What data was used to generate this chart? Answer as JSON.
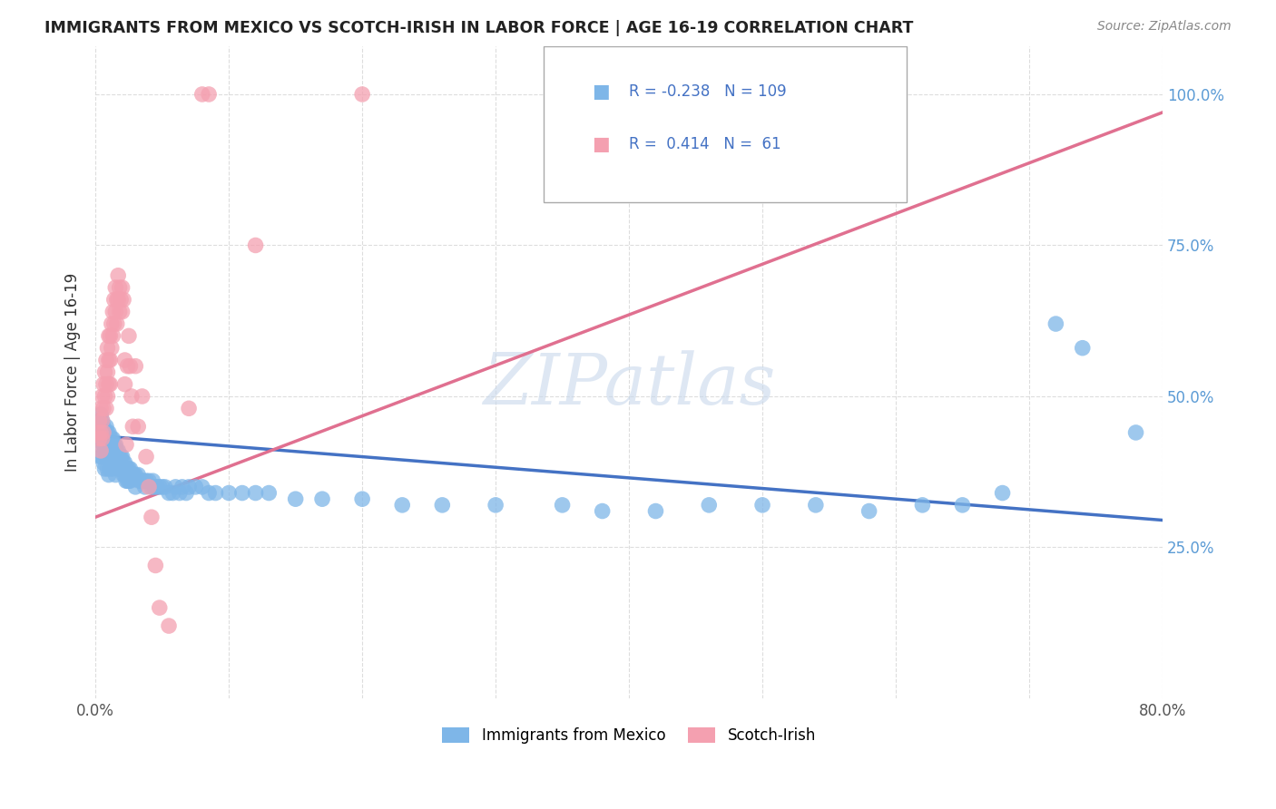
{
  "title": "IMMIGRANTS FROM MEXICO VS SCOTCH-IRISH IN LABOR FORCE | AGE 16-19 CORRELATION CHART",
  "source": "Source: ZipAtlas.com",
  "ylabel": "In Labor Force | Age 16-19",
  "x_min": 0.0,
  "x_max": 0.8,
  "y_min": 0.0,
  "y_max": 1.08,
  "y_ticks": [
    0.25,
    0.5,
    0.75,
    1.0
  ],
  "y_tick_labels": [
    "25.0%",
    "50.0%",
    "75.0%",
    "100.0%"
  ],
  "watermark": "ZIPatlas",
  "legend_blue_R": "-0.238",
  "legend_blue_N": "109",
  "legend_pink_R": "0.414",
  "legend_pink_N": "61",
  "blue_color": "#7EB6E8",
  "pink_color": "#F4A0B0",
  "blue_line_color": "#4472C4",
  "pink_line_color": "#E07090",
  "blue_scatter": [
    [
      0.002,
      0.44
    ],
    [
      0.003,
      0.46
    ],
    [
      0.003,
      0.42
    ],
    [
      0.004,
      0.47
    ],
    [
      0.004,
      0.43
    ],
    [
      0.004,
      0.4
    ],
    [
      0.005,
      0.46
    ],
    [
      0.005,
      0.43
    ],
    [
      0.005,
      0.4
    ],
    [
      0.006,
      0.45
    ],
    [
      0.006,
      0.42
    ],
    [
      0.006,
      0.39
    ],
    [
      0.007,
      0.44
    ],
    [
      0.007,
      0.41
    ],
    [
      0.007,
      0.38
    ],
    [
      0.008,
      0.45
    ],
    [
      0.008,
      0.43
    ],
    [
      0.008,
      0.4
    ],
    [
      0.009,
      0.44
    ],
    [
      0.009,
      0.41
    ],
    [
      0.009,
      0.38
    ],
    [
      0.01,
      0.44
    ],
    [
      0.01,
      0.42
    ],
    [
      0.01,
      0.4
    ],
    [
      0.01,
      0.37
    ],
    [
      0.011,
      0.43
    ],
    [
      0.011,
      0.41
    ],
    [
      0.011,
      0.38
    ],
    [
      0.012,
      0.43
    ],
    [
      0.012,
      0.41
    ],
    [
      0.012,
      0.39
    ],
    [
      0.013,
      0.43
    ],
    [
      0.013,
      0.4
    ],
    [
      0.013,
      0.38
    ],
    [
      0.014,
      0.42
    ],
    [
      0.014,
      0.4
    ],
    [
      0.015,
      0.42
    ],
    [
      0.015,
      0.4
    ],
    [
      0.015,
      0.37
    ],
    [
      0.016,
      0.41
    ],
    [
      0.016,
      0.39
    ],
    [
      0.017,
      0.41
    ],
    [
      0.017,
      0.39
    ],
    [
      0.018,
      0.4
    ],
    [
      0.018,
      0.38
    ],
    [
      0.019,
      0.4
    ],
    [
      0.019,
      0.38
    ],
    [
      0.02,
      0.4
    ],
    [
      0.02,
      0.38
    ],
    [
      0.021,
      0.39
    ],
    [
      0.021,
      0.37
    ],
    [
      0.022,
      0.39
    ],
    [
      0.022,
      0.37
    ],
    [
      0.023,
      0.38
    ],
    [
      0.023,
      0.36
    ],
    [
      0.024,
      0.38
    ],
    [
      0.024,
      0.36
    ],
    [
      0.025,
      0.38
    ],
    [
      0.025,
      0.36
    ],
    [
      0.026,
      0.38
    ],
    [
      0.026,
      0.36
    ],
    [
      0.027,
      0.37
    ],
    [
      0.028,
      0.37
    ],
    [
      0.029,
      0.37
    ],
    [
      0.03,
      0.37
    ],
    [
      0.03,
      0.35
    ],
    [
      0.032,
      0.37
    ],
    [
      0.033,
      0.36
    ],
    [
      0.034,
      0.36
    ],
    [
      0.035,
      0.36
    ],
    [
      0.036,
      0.36
    ],
    [
      0.037,
      0.35
    ],
    [
      0.038,
      0.36
    ],
    [
      0.04,
      0.36
    ],
    [
      0.042,
      0.35
    ],
    [
      0.043,
      0.36
    ],
    [
      0.044,
      0.35
    ],
    [
      0.046,
      0.35
    ],
    [
      0.048,
      0.35
    ],
    [
      0.05,
      0.35
    ],
    [
      0.052,
      0.35
    ],
    [
      0.055,
      0.34
    ],
    [
      0.058,
      0.34
    ],
    [
      0.06,
      0.35
    ],
    [
      0.063,
      0.34
    ],
    [
      0.065,
      0.35
    ],
    [
      0.068,
      0.34
    ],
    [
      0.07,
      0.35
    ],
    [
      0.075,
      0.35
    ],
    [
      0.08,
      0.35
    ],
    [
      0.085,
      0.34
    ],
    [
      0.09,
      0.34
    ],
    [
      0.1,
      0.34
    ],
    [
      0.11,
      0.34
    ],
    [
      0.12,
      0.34
    ],
    [
      0.13,
      0.34
    ],
    [
      0.15,
      0.33
    ],
    [
      0.17,
      0.33
    ],
    [
      0.2,
      0.33
    ],
    [
      0.23,
      0.32
    ],
    [
      0.26,
      0.32
    ],
    [
      0.3,
      0.32
    ],
    [
      0.35,
      0.32
    ],
    [
      0.38,
      0.31
    ],
    [
      0.42,
      0.31
    ],
    [
      0.46,
      0.32
    ],
    [
      0.5,
      0.32
    ],
    [
      0.54,
      0.32
    ],
    [
      0.58,
      0.31
    ],
    [
      0.62,
      0.32
    ],
    [
      0.65,
      0.32
    ],
    [
      0.68,
      0.34
    ],
    [
      0.72,
      0.62
    ],
    [
      0.74,
      0.58
    ],
    [
      0.78,
      0.44
    ]
  ],
  "pink_scatter": [
    [
      0.002,
      0.44
    ],
    [
      0.003,
      0.46
    ],
    [
      0.003,
      0.43
    ],
    [
      0.004,
      0.48
    ],
    [
      0.004,
      0.44
    ],
    [
      0.004,
      0.41
    ],
    [
      0.005,
      0.5
    ],
    [
      0.005,
      0.46
    ],
    [
      0.005,
      0.43
    ],
    [
      0.006,
      0.52
    ],
    [
      0.006,
      0.48
    ],
    [
      0.006,
      0.44
    ],
    [
      0.007,
      0.54
    ],
    [
      0.007,
      0.5
    ],
    [
      0.008,
      0.56
    ],
    [
      0.008,
      0.52
    ],
    [
      0.008,
      0.48
    ],
    [
      0.009,
      0.58
    ],
    [
      0.009,
      0.54
    ],
    [
      0.009,
      0.5
    ],
    [
      0.01,
      0.6
    ],
    [
      0.01,
      0.56
    ],
    [
      0.01,
      0.52
    ],
    [
      0.011,
      0.6
    ],
    [
      0.011,
      0.56
    ],
    [
      0.011,
      0.52
    ],
    [
      0.012,
      0.62
    ],
    [
      0.012,
      0.58
    ],
    [
      0.013,
      0.64
    ],
    [
      0.013,
      0.6
    ],
    [
      0.014,
      0.66
    ],
    [
      0.014,
      0.62
    ],
    [
      0.015,
      0.68
    ],
    [
      0.015,
      0.64
    ],
    [
      0.016,
      0.66
    ],
    [
      0.016,
      0.62
    ],
    [
      0.017,
      0.7
    ],
    [
      0.017,
      0.66
    ],
    [
      0.018,
      0.68
    ],
    [
      0.018,
      0.64
    ],
    [
      0.019,
      0.66
    ],
    [
      0.02,
      0.68
    ],
    [
      0.02,
      0.64
    ],
    [
      0.021,
      0.66
    ],
    [
      0.022,
      0.56
    ],
    [
      0.022,
      0.52
    ],
    [
      0.023,
      0.42
    ],
    [
      0.024,
      0.55
    ],
    [
      0.025,
      0.6
    ],
    [
      0.026,
      0.55
    ],
    [
      0.027,
      0.5
    ],
    [
      0.028,
      0.45
    ],
    [
      0.03,
      0.55
    ],
    [
      0.032,
      0.45
    ],
    [
      0.035,
      0.5
    ],
    [
      0.038,
      0.4
    ],
    [
      0.04,
      0.35
    ],
    [
      0.042,
      0.3
    ],
    [
      0.045,
      0.22
    ],
    [
      0.048,
      0.15
    ],
    [
      0.055,
      0.12
    ],
    [
      0.07,
      0.48
    ],
    [
      0.08,
      1.0
    ],
    [
      0.085,
      1.0
    ],
    [
      0.12,
      0.75
    ],
    [
      0.2,
      1.0
    ]
  ],
  "blue_trendline": [
    [
      0.0,
      0.435
    ],
    [
      0.8,
      0.295
    ]
  ],
  "pink_trendline": [
    [
      0.0,
      0.3
    ],
    [
      0.8,
      0.97
    ]
  ]
}
